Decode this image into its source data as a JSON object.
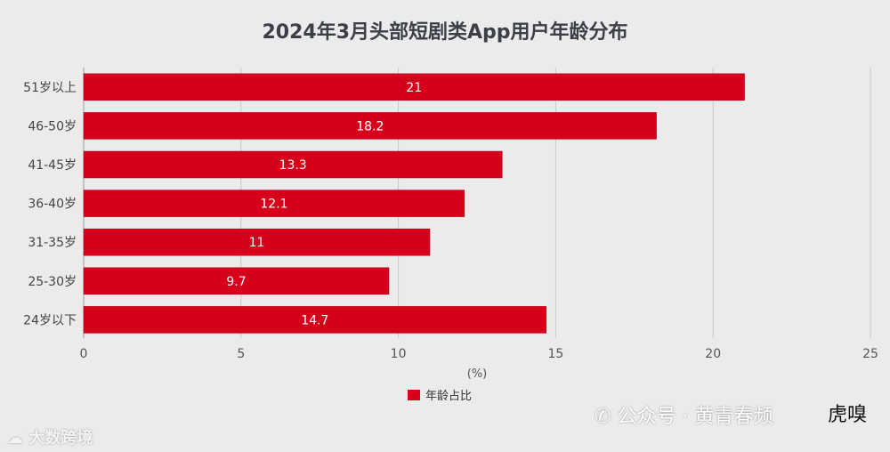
{
  "chart_data": {
    "type": "bar",
    "orientation": "horizontal",
    "title": "2024年3月头部短剧类App用户年龄分布",
    "categories": [
      "51岁以上",
      "46-50岁",
      "41-45岁",
      "36-40岁",
      "31-35岁",
      "25-30岁",
      "24岁以下"
    ],
    "series": [
      {
        "name": "年龄占比",
        "values": [
          21,
          18.2,
          13.3,
          12.1,
          11,
          9.7,
          14.7
        ]
      }
    ],
    "value_labels": [
      "21",
      "18.2",
      "13.3",
      "12.1",
      "11",
      "9.7",
      "14.7"
    ],
    "xlabel": "(%)",
    "xlim": [
      0,
      25
    ],
    "xticks": [
      0,
      5,
      10,
      15,
      20,
      25
    ],
    "grid": true,
    "legend": "bottom-center",
    "bar_color": "#d7001b"
  },
  "watermarks": {
    "left": "大数跨境",
    "right": "公众号 · 黄青春频",
    "logo": "虎嗅"
  },
  "icons": {
    "left_watermark_icon": "cloud-icon",
    "right_watermark_icon": "wechat-icon"
  }
}
